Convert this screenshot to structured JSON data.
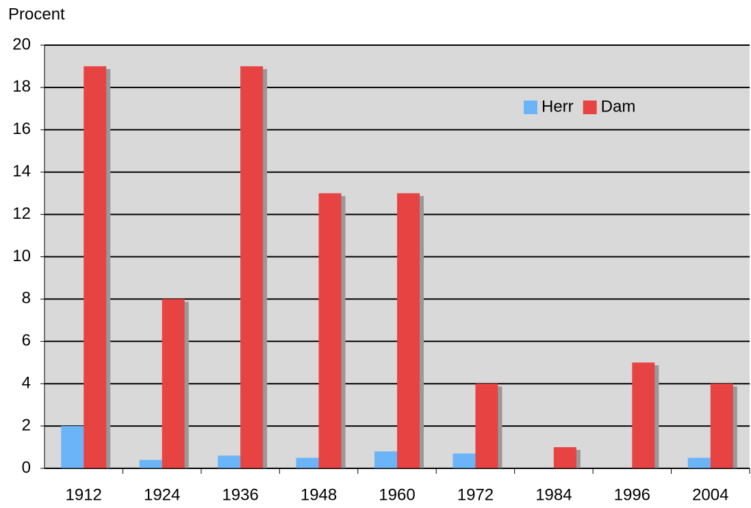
{
  "chart_data": {
    "type": "bar",
    "y_label": "Procent",
    "categories": [
      "1912",
      "1924",
      "1936",
      "1948",
      "1960",
      "1972",
      "1984",
      "1996",
      "2004"
    ],
    "series": [
      {
        "name": "Herr",
        "color": "#6cb4f8",
        "values": [
          2,
          0.4,
          0.6,
          0.5,
          0.8,
          0.7,
          0,
          0,
          0.5
        ]
      },
      {
        "name": "Dam",
        "color": "#e84343",
        "values": [
          19,
          8,
          19,
          13,
          13,
          4,
          1,
          5,
          4
        ]
      }
    ],
    "ylim": [
      0,
      20
    ],
    "yticks": [
      0,
      2,
      4,
      6,
      8,
      10,
      12,
      14,
      16,
      18,
      20
    ],
    "grid": true,
    "legend": "upper right"
  }
}
